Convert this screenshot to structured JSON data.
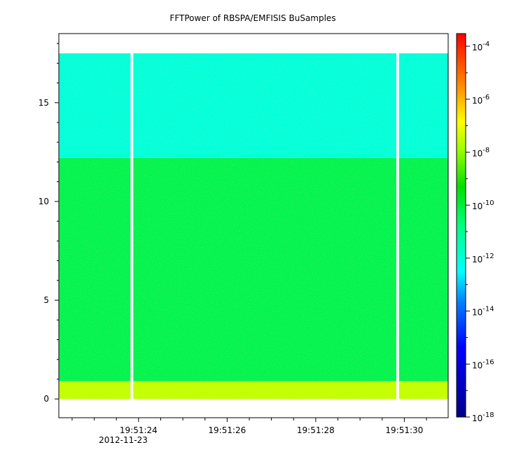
{
  "chart_data": {
    "type": "heatmap",
    "title": "FFTPower of RBSPA/EMFISIS  BuSamples",
    "xlabel": "",
    "ylabel": "",
    "x_ticks": [
      "19:51:24",
      "19:51:26",
      "19:51:28",
      "19:51:30"
    ],
    "x_tick_values_s": [
      24,
      26,
      28,
      30
    ],
    "x_subtitle": "2012-11-23",
    "x_range_s": [
      22.2,
      30.99
    ],
    "y_ticks": [
      "0",
      "5",
      "10",
      "15"
    ],
    "y_tick_values": [
      0,
      5,
      10,
      15
    ],
    "ylim": [
      -0.95,
      18.5
    ],
    "y_data_top": 17.5,
    "gaps_s": [
      23.85,
      29.85
    ],
    "colorbar": {
      "scale": "log",
      "range": [
        1e-18,
        0.0003
      ],
      "tick_exponents": [
        "-4",
        "-6",
        "-8",
        "-10",
        "-12",
        "-14",
        "-16",
        "-18"
      ],
      "tick_base": "10",
      "colors": [
        "#00008b",
        "#0000ff",
        "#00ffff",
        "#00ff00",
        "#ffff00",
        "#ff8000",
        "#ff0000"
      ]
    },
    "bands": [
      {
        "y_from": 0,
        "y_to": 0.9,
        "log_power": -7.5
      },
      {
        "y_from": 0.9,
        "y_to": 12.2,
        "log_power": -10.2
      },
      {
        "y_from": 12.2,
        "y_to": 17.5,
        "log_power": -12.0
      }
    ]
  }
}
